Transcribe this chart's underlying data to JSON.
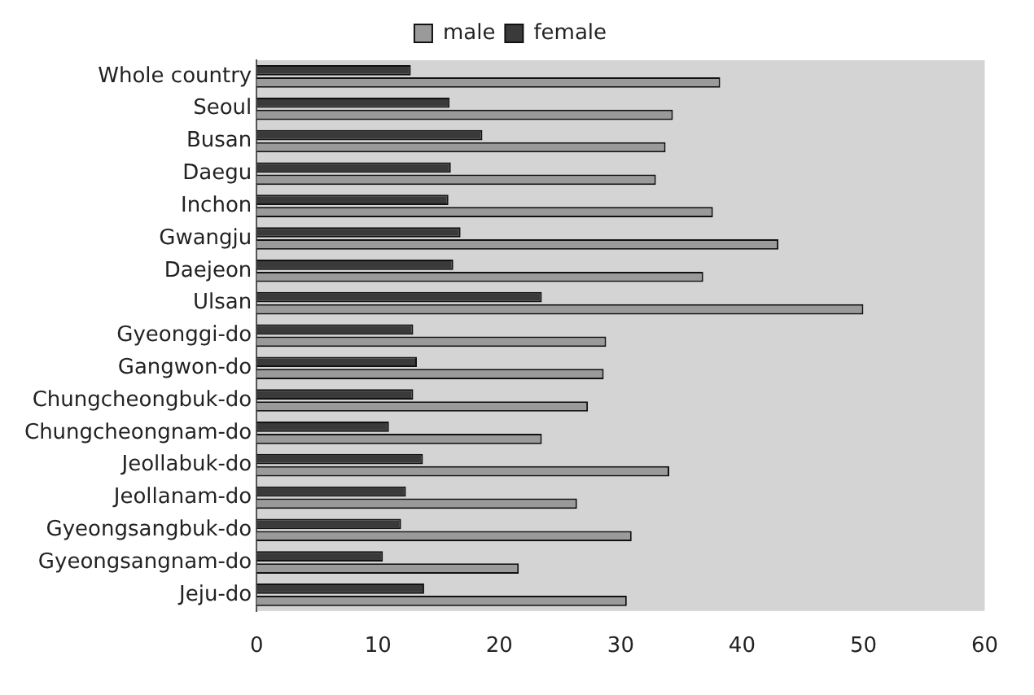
{
  "chart_data": {
    "type": "bar",
    "orientation": "horizontal",
    "categories": [
      "Whole country",
      "Seoul",
      "Busan",
      "Daegu",
      "Inchon",
      "Gwangju",
      "Daejeon",
      "Ulsan",
      "Gyeonggi-do",
      "Gangwon-do",
      "Chungcheongbuk-do",
      "Chungcheongnam-do",
      "Jeollabuk-do",
      "Jeollanam-do",
      "Gyeongsangbuk-do",
      "Gyeongsangnam-do",
      "Jeju-do"
    ],
    "series": [
      {
        "name": "male",
        "color": "#9a9a9a",
        "values": [
          38.2,
          34.3,
          33.7,
          32.9,
          37.6,
          43.0,
          36.8,
          50.0,
          28.8,
          28.6,
          27.3,
          23.5,
          34.0,
          26.4,
          30.9,
          21.6,
          30.5
        ]
      },
      {
        "name": "female",
        "color": "#3a3a3a",
        "values": [
          12.7,
          15.9,
          18.6,
          16.0,
          15.8,
          16.8,
          16.2,
          23.5,
          12.9,
          13.2,
          12.9,
          10.9,
          13.7,
          12.3,
          11.9,
          10.4,
          13.8
        ]
      }
    ],
    "xlim": [
      0,
      60
    ],
    "xticks": [
      0,
      10,
      20,
      30,
      40,
      50,
      60
    ],
    "legend": "top",
    "grid": false
  }
}
